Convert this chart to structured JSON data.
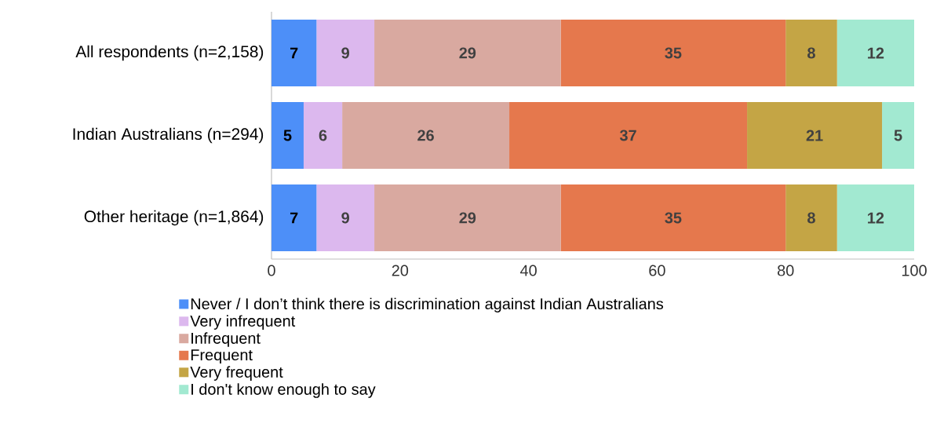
{
  "chart_data": {
    "type": "bar",
    "orientation": "horizontal",
    "stacked": true,
    "categories": [
      "All respondents (n=2,158)",
      "Indian Australians (n=294)",
      "Other heritage (n=1,864)"
    ],
    "series": [
      {
        "name": "Never / I don’t think there is discrimination against Indian Australians",
        "color": "#4d8ff8",
        "values": [
          7,
          5,
          7
        ]
      },
      {
        "name": "Very infrequent",
        "color": "#dcb8ee",
        "values": [
          9,
          6,
          9
        ]
      },
      {
        "name": "Infrequent",
        "color": "#d9a9a0",
        "values": [
          29,
          26,
          29
        ]
      },
      {
        "name": "Frequent",
        "color": "#e5784d",
        "values": [
          35,
          37,
          35
        ]
      },
      {
        "name": "Very frequent",
        "color": "#c4a545",
        "values": [
          8,
          21,
          8
        ]
      },
      {
        "name": "I don't know enough to say",
        "color": "#a2e9d1",
        "values": [
          12,
          5,
          12
        ]
      }
    ],
    "xlim": [
      0,
      100
    ],
    "xticks": [
      0,
      20,
      40,
      60,
      80,
      100
    ],
    "data_labels": true,
    "legend": "bottom"
  }
}
